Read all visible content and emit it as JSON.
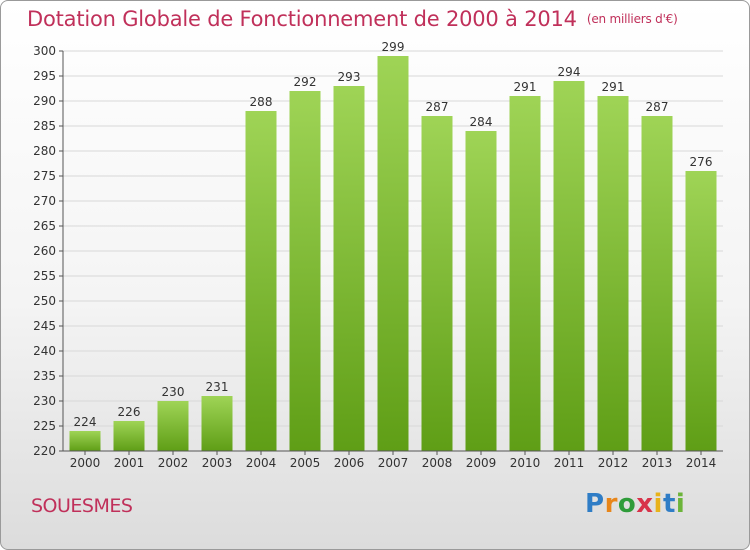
{
  "title": "Dotation Globale de Fonctionnement de 2000 à 2014",
  "subtitle": "(en milliers d'€)",
  "place": "SOUESMES",
  "logo": {
    "p": "P",
    "r": "r",
    "o": "o",
    "x": "x",
    "i": "i",
    "t": "t",
    "i2": "i"
  },
  "colors": {
    "bar_top": "#9fd456",
    "bar_bottom": "#5f9e16",
    "title": "#c0305a",
    "grid": "#d8d8d8"
  },
  "chart_data": {
    "type": "bar",
    "categories": [
      "2000",
      "2001",
      "2002",
      "2003",
      "2004",
      "2005",
      "2006",
      "2007",
      "2008",
      "2009",
      "2010",
      "2011",
      "2012",
      "2013",
      "2014"
    ],
    "values": [
      224,
      226,
      230,
      231,
      288,
      292,
      293,
      299,
      287,
      284,
      291,
      294,
      291,
      287,
      276
    ],
    "title": "Dotation Globale de Fonctionnement de 2000 à 2014",
    "subtitle": "(en milliers d'€)",
    "ylim": [
      220,
      300
    ],
    "yticks": [
      220,
      225,
      230,
      235,
      240,
      245,
      250,
      255,
      260,
      265,
      270,
      275,
      280,
      285,
      290,
      295,
      300
    ],
    "grid": true
  }
}
